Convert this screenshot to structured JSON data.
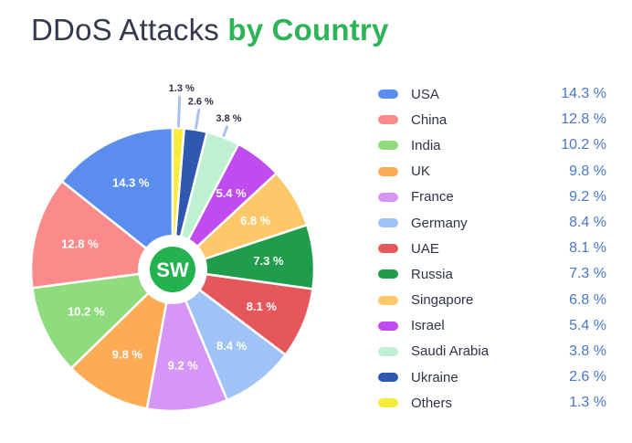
{
  "title": {
    "main": "DDoS Attacks",
    "accent": "by Country"
  },
  "logo": {
    "text": "SW"
  },
  "chart_data": {
    "type": "pie",
    "title": "DDoS Attacks by Country",
    "unit": "%",
    "legend_position": "right",
    "slices": [
      {
        "label": "USA",
        "value": 14.3,
        "display": "14.3 %",
        "color": "#5b8def"
      },
      {
        "label": "China",
        "value": 12.8,
        "display": "12.8 %",
        "color": "#fb8a8a"
      },
      {
        "label": "India",
        "value": 10.2,
        "display": "10.2 %",
        "color": "#8fdc7e"
      },
      {
        "label": "UK",
        "value": 9.8,
        "display": "9.8 %",
        "color": "#fdac55"
      },
      {
        "label": "France",
        "value": 9.2,
        "display": "9.2 %",
        "color": "#d696f5"
      },
      {
        "label": "Germany",
        "value": 8.4,
        "display": "8.4 %",
        "color": "#9fc3f7"
      },
      {
        "label": "UAE",
        "value": 8.1,
        "display": "8.1 %",
        "color": "#e5575b"
      },
      {
        "label": "Russia",
        "value": 7.3,
        "display": "7.3 %",
        "color": "#1f9d4c"
      },
      {
        "label": "Singapore",
        "value": 6.8,
        "display": "6.8 %",
        "color": "#fec86a"
      },
      {
        "label": "Israel",
        "value": 5.4,
        "display": "5.4 %",
        "color": "#c04cf0"
      },
      {
        "label": "Saudi Arabia",
        "value": 3.8,
        "display": "3.8 %",
        "color": "#bff0d2"
      },
      {
        "label": "Ukraine",
        "value": 2.6,
        "display": "2.6 %",
        "color": "#2f58b0"
      },
      {
        "label": "Others",
        "value": 1.3,
        "display": "1.3 %",
        "color": "#f8ec3a"
      }
    ]
  }
}
